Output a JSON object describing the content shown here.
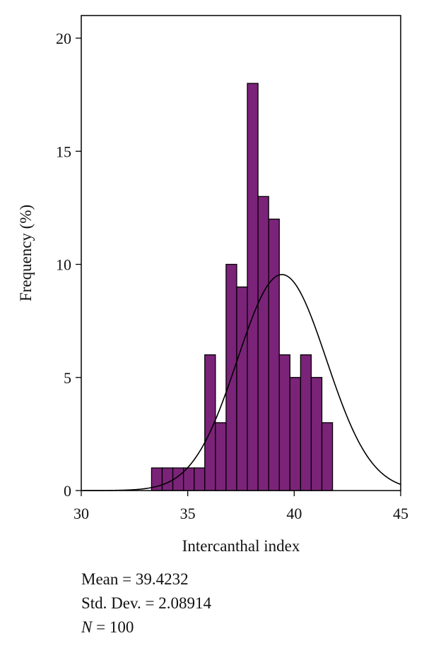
{
  "chart_data": {
    "type": "bar",
    "subtype": "histogram",
    "xlabel": "Intercanthal index",
    "ylabel": "Frequency (%)",
    "xlim": [
      30,
      45
    ],
    "ylim": [
      0,
      21
    ],
    "xticks": [
      30,
      35,
      40,
      45
    ],
    "yticks": [
      0,
      5,
      10,
      15,
      20
    ],
    "grid": false,
    "bar_color": "#7b2379",
    "bin_width": 0.5,
    "bins": [
      {
        "start": 33.3,
        "end": 33.8,
        "value": 1
      },
      {
        "start": 33.8,
        "end": 34.3,
        "value": 1
      },
      {
        "start": 34.3,
        "end": 34.8,
        "value": 1
      },
      {
        "start": 34.8,
        "end": 35.3,
        "value": 1
      },
      {
        "start": 35.3,
        "end": 35.8,
        "value": 1
      },
      {
        "start": 35.8,
        "end": 36.3,
        "value": 6
      },
      {
        "start": 36.3,
        "end": 36.8,
        "value": 3
      },
      {
        "start": 36.8,
        "end": 37.3,
        "value": 10
      },
      {
        "start": 37.3,
        "end": 37.8,
        "value": 9
      },
      {
        "start": 37.8,
        "end": 38.3,
        "value": 18
      },
      {
        "start": 38.3,
        "end": 38.8,
        "value": 13
      },
      {
        "start": 38.8,
        "end": 39.3,
        "value": 12
      },
      {
        "start": 39.3,
        "end": 39.8,
        "value": 6
      },
      {
        "start": 39.8,
        "end": 40.3,
        "value": 5
      },
      {
        "start": 40.3,
        "end": 40.8,
        "value": 6
      },
      {
        "start": 40.8,
        "end": 41.3,
        "value": 5
      },
      {
        "start": 41.3,
        "end": 41.8,
        "value": 3
      }
    ],
    "curve": {
      "type": "normal",
      "mean": 39.4232,
      "sd": 2.08914,
      "n": 100
    }
  },
  "stats": {
    "mean_label": "Mean = 39.4232",
    "sd_label": "Std. Dev. = 2.08914",
    "n_symbol": "N",
    "n_value": " = 100"
  }
}
